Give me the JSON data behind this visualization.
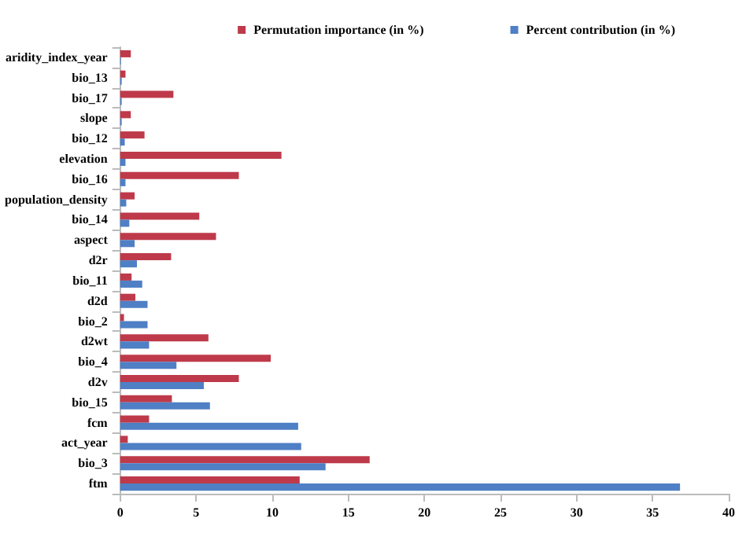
{
  "chart_data": {
    "type": "bar",
    "orientation": "horizontal",
    "categories": [
      "aridity_index_year",
      "bio_13",
      "bio_17",
      "slope",
      "bio_12",
      "elevation",
      "bio_16",
      "population_density",
      "bio_14",
      "aspect",
      "d2r",
      "bio_11",
      "d2d",
      "bio_2",
      "d2wt",
      "bio_4",
      "d2v",
      "bio_15",
      "fcm",
      "act_year",
      "bio_3",
      "ftm"
    ],
    "series": [
      {
        "name": "Permutation importance (in %)",
        "color": "#be3a4a",
        "values": [
          0.7,
          0.35,
          3.5,
          0.7,
          1.6,
          10.6,
          7.8,
          0.95,
          5.2,
          6.3,
          3.35,
          0.75,
          1.0,
          0.25,
          5.8,
          9.9,
          7.8,
          3.4,
          1.9,
          0.5,
          16.4,
          11.8
        ]
      },
      {
        "name": "Percent contribution (in %)",
        "color": "#4f7fc4",
        "values": [
          0.05,
          0.1,
          0.1,
          0.1,
          0.3,
          0.35,
          0.35,
          0.4,
          0.6,
          0.95,
          1.1,
          1.45,
          1.8,
          1.8,
          1.9,
          3.7,
          5.5,
          5.9,
          11.7,
          11.9,
          13.5,
          36.8
        ]
      }
    ],
    "xlim": [
      0,
      40
    ],
    "xticks": [
      0,
      5,
      10,
      15,
      20,
      25,
      30,
      35,
      40
    ],
    "grid": false,
    "legend": "top right"
  }
}
